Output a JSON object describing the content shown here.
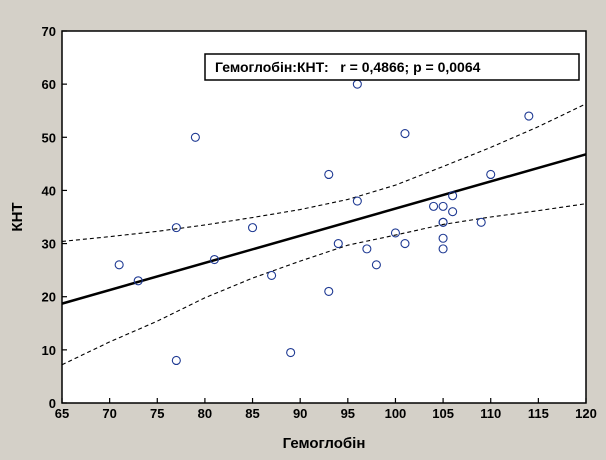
{
  "chart_data": {
    "type": "scatter",
    "title": "",
    "xlabel": "Гемоглобін",
    "ylabel": "КНТ",
    "xlim": [
      65,
      120
    ],
    "ylim": [
      0,
      70
    ],
    "x_ticks": [
      65,
      70,
      75,
      80,
      85,
      90,
      95,
      100,
      105,
      110,
      115,
      120
    ],
    "y_ticks": [
      0,
      10,
      20,
      30,
      40,
      50,
      60,
      70
    ],
    "annotation": "Гемоглобін:КНТ:   r = 0,4866; p = 0,0064",
    "grid": false,
    "colors": {
      "background": "#d4d0c8",
      "plot_area": "#ffffff",
      "points": "#1f3a93",
      "fit_line": "#000000",
      "confidence_band": "#000000"
    },
    "series": [
      {
        "kind": "points",
        "x": [
          71,
          73,
          77,
          77,
          79,
          81,
          85,
          87,
          89,
          93,
          93,
          94,
          96,
          96,
          97,
          98,
          100,
          101,
          101,
          104,
          105,
          105,
          105,
          105,
          105,
          106,
          106,
          109,
          110,
          114
        ],
        "y": [
          26,
          23,
          33,
          8,
          50,
          27,
          33,
          24,
          9.5,
          43,
          21,
          30,
          60,
          38,
          29,
          26,
          32,
          50.7,
          30,
          37,
          37,
          34,
          31,
          29,
          34,
          39,
          36,
          34,
          43,
          54
        ]
      },
      {
        "kind": "regression-line",
        "x": [
          65,
          120
        ],
        "y": [
          18.7,
          46.8
        ]
      },
      {
        "kind": "confidence-upper",
        "x": [
          65,
          70,
          75,
          80,
          85,
          90,
          95,
          100,
          105,
          110,
          115,
          120
        ],
        "y": [
          30.4,
          31.3,
          32.3,
          33.5,
          34.9,
          36.4,
          38.3,
          41.0,
          44.5,
          48.1,
          52.0,
          56.3
        ]
      },
      {
        "kind": "confidence-lower",
        "x": [
          65,
          70,
          75,
          80,
          85,
          90,
          95,
          100,
          105,
          110,
          115,
          120
        ],
        "y": [
          7.2,
          11.5,
          15.4,
          19.8,
          23.5,
          26.7,
          29.7,
          31.6,
          33.6,
          35.0,
          36.2,
          37.5
        ]
      }
    ]
  }
}
